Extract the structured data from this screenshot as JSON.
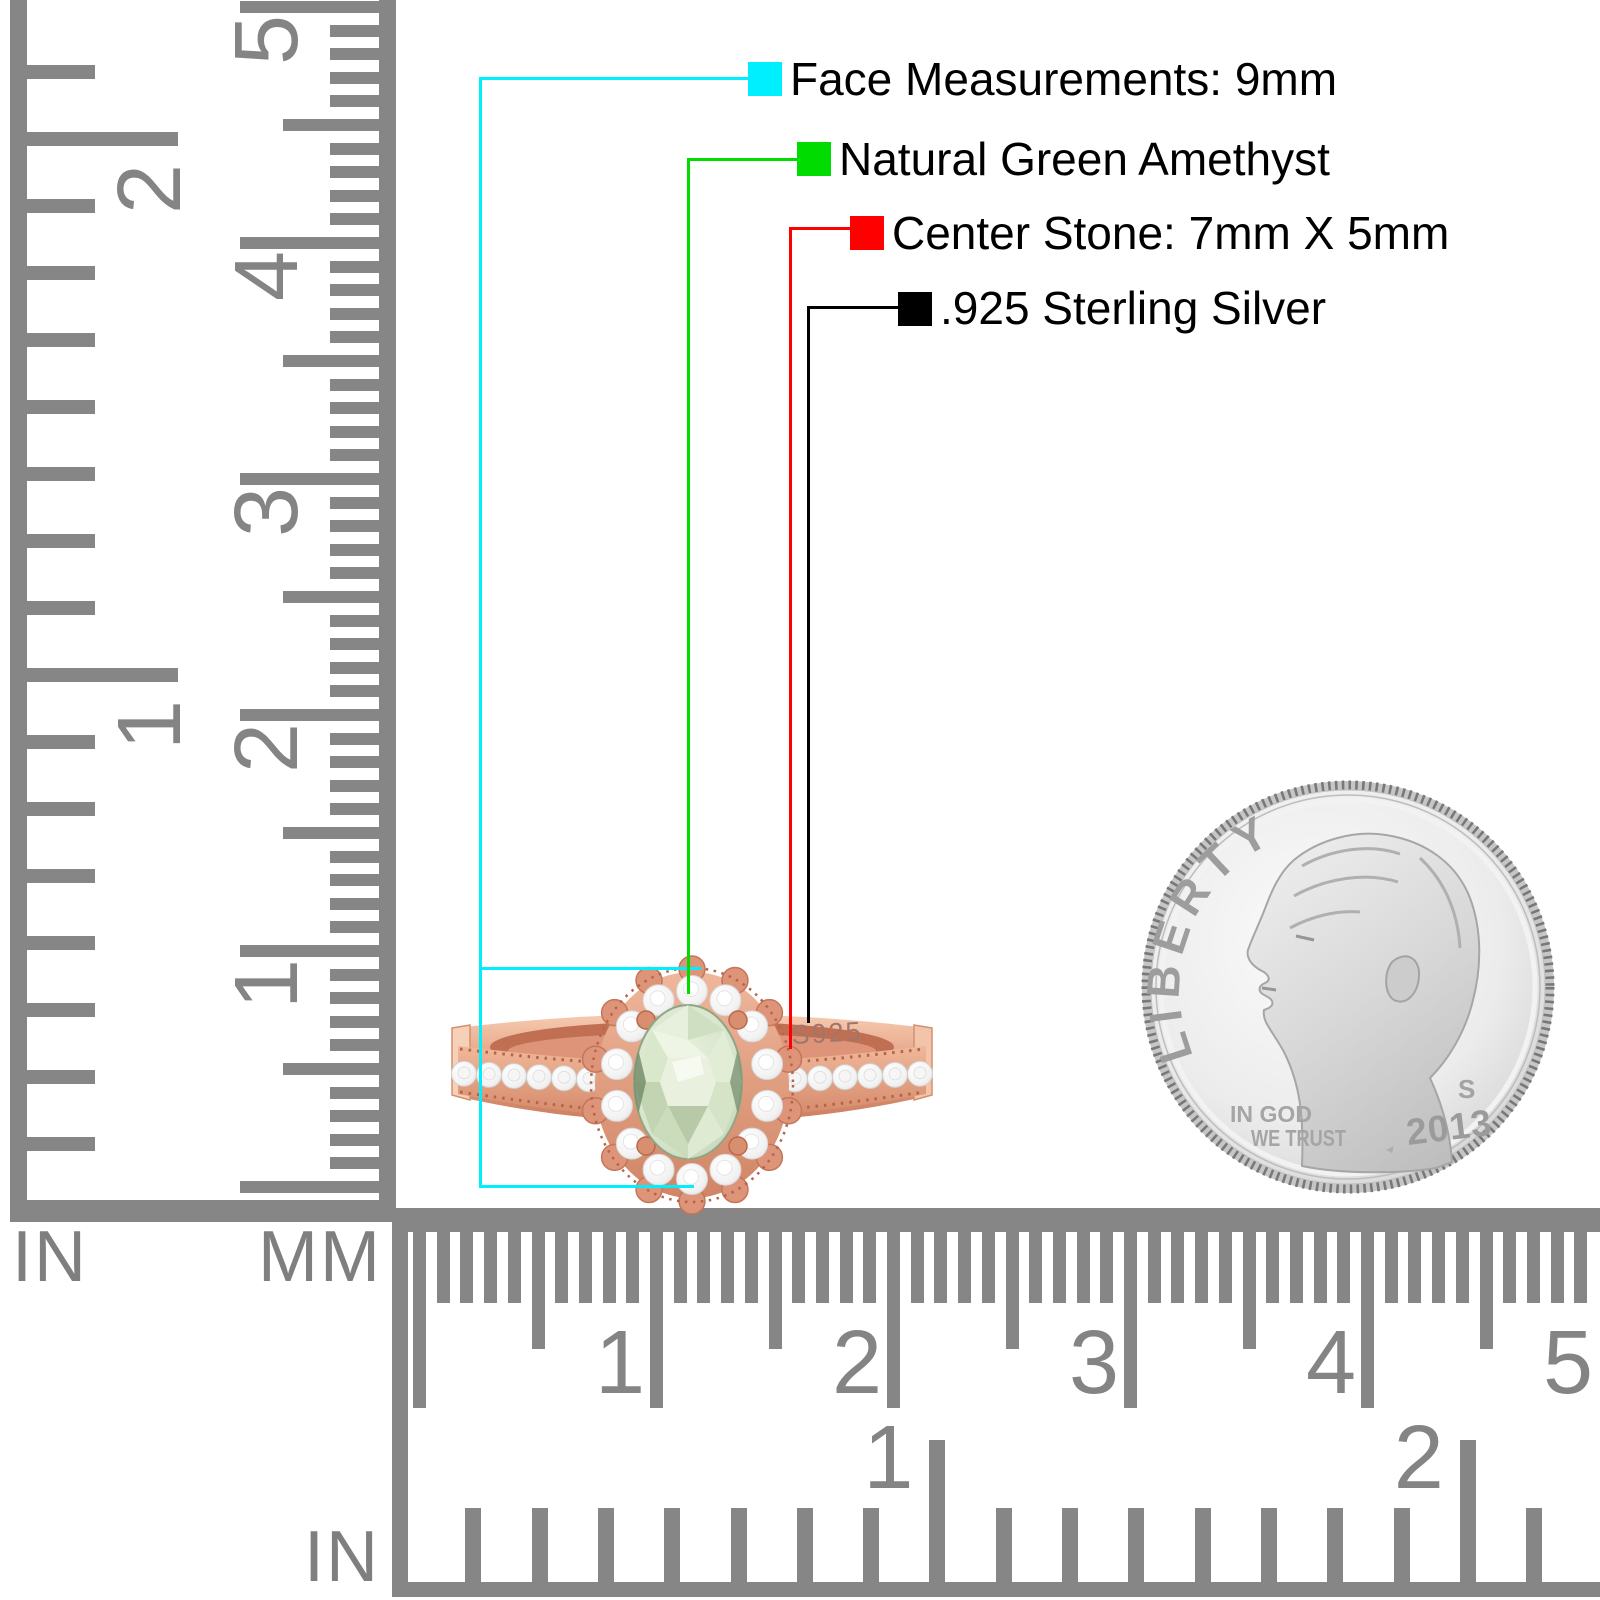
{
  "annotations": {
    "items": [
      {
        "label": "Face Measurements: 9mm",
        "color": "#00efff"
      },
      {
        "label": "Natural Green Amethyst",
        "color": "#00dc00"
      },
      {
        "label": "Center Stone: 7mm X 5mm",
        "color": "#fe0000"
      },
      {
        "label": ".925 Sterling Silver",
        "color": "#000000"
      }
    ]
  },
  "vertical_ruler": {
    "left_unit": "IN",
    "right_unit": "MM",
    "inch_labels": [
      "1",
      "2"
    ],
    "cm_labels": [
      "1",
      "2",
      "3",
      "4",
      "5"
    ]
  },
  "bottom_ruler": {
    "unit": "IN",
    "cm_labels": [
      "1",
      "2",
      "3",
      "4",
      "5"
    ],
    "inch_labels": [
      "1",
      "2"
    ]
  },
  "ring": {
    "stamp": "S925"
  },
  "coin": {
    "legend": "LIBERTY",
    "motto_line1": "IN GOD",
    "motto_line2": "WE TRUST",
    "year": "2013",
    "mint_mark": "S"
  },
  "palette": {
    "ruler_gray": "#868686",
    "rose_gold": "#e2a184",
    "stone_white": "#ffffff",
    "amethyst_green": "#d7e4cc",
    "coin_silver": "#d9d9d9"
  }
}
